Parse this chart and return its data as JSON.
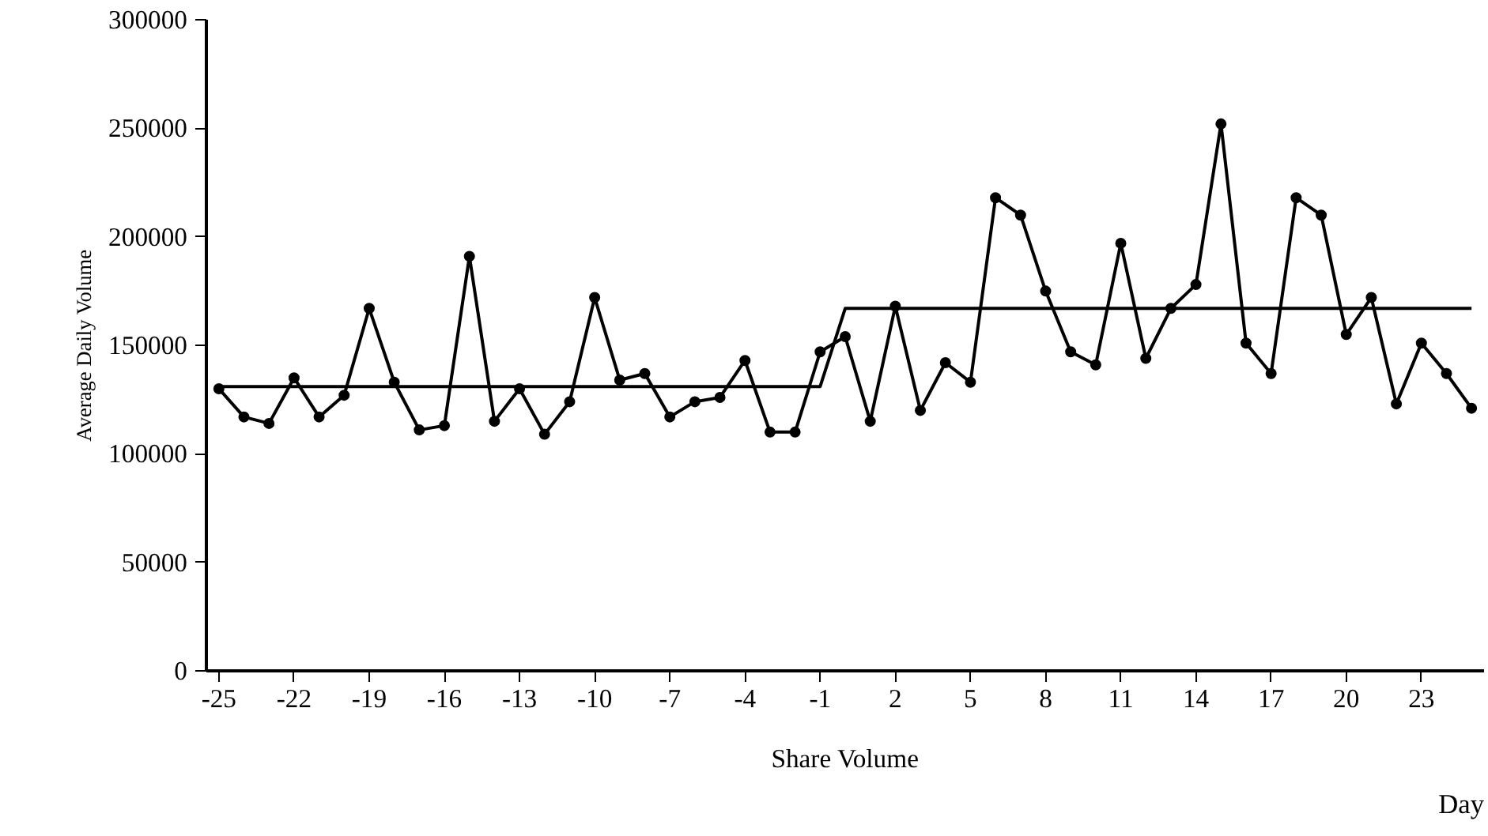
{
  "chart_data": {
    "type": "line",
    "xlabel": "Share Volume",
    "ylabel": "Average Daily Volume",
    "annotations": [
      "Day"
    ],
    "x": [
      -25,
      -24,
      -23,
      -22,
      -21,
      -20,
      -19,
      -18,
      -17,
      -16,
      -15,
      -14,
      -13,
      -12,
      -11,
      -10,
      -9,
      -8,
      -7,
      -6,
      -5,
      -4,
      -3,
      -2,
      -1,
      0,
      1,
      2,
      3,
      4,
      5,
      6,
      7,
      8,
      9,
      10,
      11,
      12,
      13,
      14,
      15,
      16,
      17,
      18,
      19,
      20,
      21,
      22,
      23,
      24,
      25
    ],
    "series": [
      {
        "color": "#000000",
        "marker": "circle",
        "values": [
          130000,
          117000,
          114000,
          135000,
          117000,
          127000,
          167000,
          133000,
          111000,
          113000,
          191000,
          115000,
          130000,
          109000,
          124000,
          172000,
          134000,
          137000,
          117000,
          124000,
          126000,
          143000,
          110000,
          110000,
          147000,
          154000,
          115000,
          168000,
          120000,
          142000,
          133000,
          218000,
          210000,
          175000,
          147000,
          141000,
          197000,
          144000,
          167000,
          178000,
          252000,
          151000,
          137000,
          218000,
          210000,
          155000,
          172000,
          123000,
          151000,
          137000,
          121000
        ]
      },
      {
        "color": "#000000",
        "marker": "none",
        "x": [
          -25,
          -1,
          0,
          25
        ],
        "values": [
          131000,
          131000,
          167000,
          167000
        ]
      }
    ],
    "xlim": [
      -25.5,
      25.5
    ],
    "xticks": [
      {
        "value": -25,
        "label": "-25"
      },
      {
        "value": -22,
        "label": "-22"
      },
      {
        "value": -19,
        "label": "-19"
      },
      {
        "value": -16,
        "label": "-16"
      },
      {
        "value": -13,
        "label": "-13"
      },
      {
        "value": -10,
        "label": "-10"
      },
      {
        "value": -7,
        "label": "-7"
      },
      {
        "value": -4,
        "label": "-4"
      },
      {
        "value": -1,
        "label": "-1"
      },
      {
        "value": 2,
        "label": "2"
      },
      {
        "value": 5,
        "label": "5"
      },
      {
        "value": 8,
        "label": "8"
      },
      {
        "value": 11,
        "label": "11"
      },
      {
        "value": 14,
        "label": "14"
      },
      {
        "value": 17,
        "label": "17"
      },
      {
        "value": 20,
        "label": "20"
      },
      {
        "value": 23,
        "label": "23"
      }
    ],
    "ylim": [
      0,
      300000
    ],
    "yticks": [
      0,
      50000,
      100000,
      150000,
      200000,
      250000,
      300000
    ],
    "grid": false,
    "line_style": "solid"
  }
}
